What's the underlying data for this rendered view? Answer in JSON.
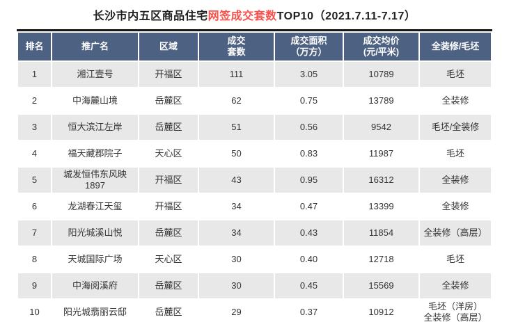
{
  "title": {
    "part1": "长沙市内五区商品住宅",
    "part2": "网签成交套数",
    "part3": "TOP10（2021.7.11-7.17）",
    "highlight_color": "#f8524c"
  },
  "table": {
    "header_bg": "#4d6182",
    "header_text_color": "#ffffff",
    "alt_row_bg": "#e8e8e8",
    "border_color": "#161616",
    "columns": [
      "排名",
      "推广名",
      "区域",
      "成交\n套数",
      "成交面积\n（万方）",
      "成交均价\n(元/平米)",
      "全装修/毛坯"
    ],
    "rows": [
      [
        "1",
        "湘江壹号",
        "开福区",
        "111",
        "3.05",
        "10789",
        "毛坯"
      ],
      [
        "2",
        "中海麓山境",
        "岳麓区",
        "62",
        "0.75",
        "13789",
        "全装修"
      ],
      [
        "3",
        "恒大滨江左岸",
        "岳麓区",
        "51",
        "0.56",
        "9542",
        "毛坯/全装修"
      ],
      [
        "4",
        "福天藏郡院子",
        "天心区",
        "50",
        "0.83",
        "11987",
        "毛坯"
      ],
      [
        "5",
        "城发恒伟东风映1897",
        "开福区",
        "43",
        "0.95",
        "16312",
        "全装修"
      ],
      [
        "6",
        "龙湖春江天玺",
        "开福区",
        "34",
        "0.47",
        "13399",
        "全装修"
      ],
      [
        "7",
        "阳光城溪山悦",
        "岳麓区",
        "34",
        "0.43",
        "11854",
        "全装修（高层）"
      ],
      [
        "8",
        "天城国际广场",
        "天心区",
        "30",
        "0.40",
        "12718",
        "毛坯"
      ],
      [
        "9",
        "中海阅溪府",
        "岳麓区",
        "30",
        "0.45",
        "15569",
        "全装修"
      ],
      [
        "10",
        "阳光城翡丽云邸",
        "岳麓区",
        "29",
        "0.37",
        "10912",
        "毛坯（洋房）\n全装修（高层）"
      ]
    ]
  },
  "chart_data": {
    "type": "table",
    "title": "长沙市内五区商品住宅网签成交套数TOP10（2021.7.11-7.17）",
    "columns": [
      "排名",
      "推广名",
      "区域",
      "成交套数",
      "成交面积（万方）",
      "成交均价(元/平米)",
      "全装修/毛坯"
    ],
    "rows": [
      [
        1,
        "湘江壹号",
        "开福区",
        111,
        3.05,
        10789,
        "毛坯"
      ],
      [
        2,
        "中海麓山境",
        "岳麓区",
        62,
        0.75,
        13789,
        "全装修"
      ],
      [
        3,
        "恒大滨江左岸",
        "岳麓区",
        51,
        0.56,
        9542,
        "毛坯/全装修"
      ],
      [
        4,
        "福天藏郡院子",
        "天心区",
        50,
        0.83,
        11987,
        "毛坯"
      ],
      [
        5,
        "城发恒伟东风映1897",
        "开福区",
        43,
        0.95,
        16312,
        "全装修"
      ],
      [
        6,
        "龙湖春江天玺",
        "开福区",
        34,
        0.47,
        13399,
        "全装修"
      ],
      [
        7,
        "阳光城溪山悦",
        "岳麓区",
        34,
        0.43,
        11854,
        "全装修（高层）"
      ],
      [
        8,
        "天城国际广场",
        "天心区",
        30,
        0.4,
        12718,
        "毛坯"
      ],
      [
        9,
        "中海阅溪府",
        "岳麓区",
        30,
        0.45,
        15569,
        "全装修"
      ],
      [
        10,
        "阳光城翡丽云邸",
        "岳麓区",
        29,
        0.37,
        10912,
        "毛坯（洋房）全装修（高层）"
      ]
    ]
  }
}
